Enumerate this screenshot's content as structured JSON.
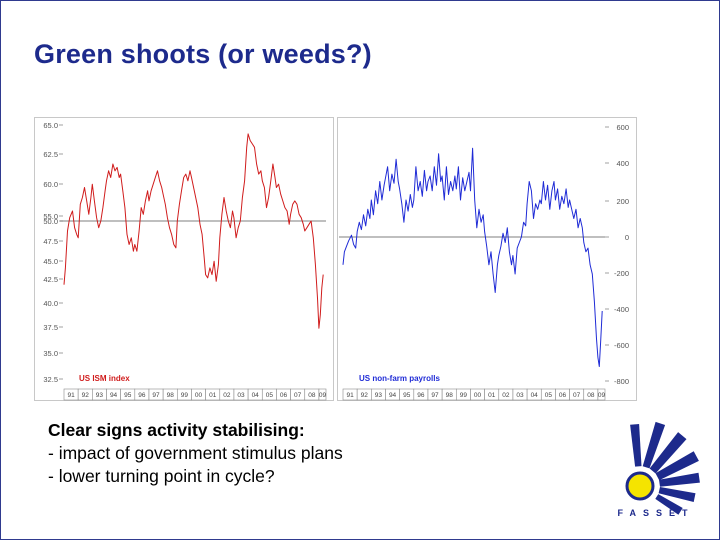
{
  "slide": {
    "title": "Green shoots (or weeds?)",
    "bullets": [
      "Clear signs activity stabilising:",
      "- impact of government stimulus plans",
      "- lower turning point in cycle?"
    ],
    "logo_text": "FASSET",
    "colors": {
      "title": "#1d2a8c",
      "border": "#2f3a8f",
      "logo_blue": "#1d2a8c",
      "logo_yellow": "#f5e400"
    }
  },
  "chart_data": [
    {
      "type": "line",
      "series": [
        {
          "name": "US ISM index",
          "color": "#d01c1c"
        }
      ],
      "x": [
        "91",
        "92",
        "93",
        "94",
        "95",
        "96",
        "97",
        "98",
        "99",
        "00",
        "01",
        "02",
        "03",
        "04",
        "05",
        "06",
        "07",
        "08",
        "09"
      ],
      "y_ticks": [
        "65.0",
        "62.5",
        "60.0",
        "55.0",
        "50.0",
        "47.5",
        "45.0",
        "42.5",
        "40.0",
        "37.5",
        "35.0",
        "32.5"
      ],
      "reference_line": 50,
      "points": [
        [
          1991.0,
          40.5
        ],
        [
          1991.1,
          43.0
        ],
        [
          1991.25,
          48.5
        ],
        [
          1991.4,
          50.5
        ],
        [
          1991.6,
          51.5
        ],
        [
          1991.75,
          49.0
        ],
        [
          1991.9,
          48.0
        ],
        [
          1992.0,
          47.5
        ],
        [
          1992.15,
          52.5
        ],
        [
          1992.3,
          53.5
        ],
        [
          1992.45,
          55.0
        ],
        [
          1992.6,
          53.0
        ],
        [
          1992.75,
          51.0
        ],
        [
          1992.9,
          53.5
        ],
        [
          1993.0,
          55.5
        ],
        [
          1993.15,
          53.0
        ],
        [
          1993.3,
          50.5
        ],
        [
          1993.45,
          49.0
        ],
        [
          1993.6,
          50.0
        ],
        [
          1993.75,
          52.0
        ],
        [
          1993.9,
          54.5
        ],
        [
          1994.0,
          56.0
        ],
        [
          1994.15,
          57.5
        ],
        [
          1994.3,
          56.5
        ],
        [
          1994.45,
          58.5
        ],
        [
          1994.6,
          57.5
        ],
        [
          1994.75,
          58.0
        ],
        [
          1994.9,
          56.5
        ],
        [
          1995.0,
          57.0
        ],
        [
          1995.15,
          54.5
        ],
        [
          1995.3,
          52.0
        ],
        [
          1995.45,
          48.0
        ],
        [
          1995.6,
          46.5
        ],
        [
          1995.75,
          47.5
        ],
        [
          1995.9,
          45.5
        ],
        [
          1996.0,
          46.5
        ],
        [
          1996.15,
          45.5
        ],
        [
          1996.3,
          48.5
        ],
        [
          1996.45,
          52.0
        ],
        [
          1996.6,
          51.0
        ],
        [
          1996.75,
          53.0
        ],
        [
          1996.9,
          54.5
        ],
        [
          1997.0,
          53.0
        ],
        [
          1997.15,
          54.5
        ],
        [
          1997.3,
          55.5
        ],
        [
          1997.45,
          56.5
        ],
        [
          1997.6,
          57.5
        ],
        [
          1997.75,
          56.0
        ],
        [
          1997.9,
          55.0
        ],
        [
          1998.0,
          54.0
        ],
        [
          1998.15,
          52.5
        ],
        [
          1998.3,
          50.5
        ],
        [
          1998.45,
          49.0
        ],
        [
          1998.6,
          48.0
        ],
        [
          1998.75,
          46.5
        ],
        [
          1998.9,
          46.0
        ],
        [
          1999.0,
          50.0
        ],
        [
          1999.15,
          52.5
        ],
        [
          1999.3,
          54.5
        ],
        [
          1999.45,
          56.5
        ],
        [
          1999.6,
          57.0
        ],
        [
          1999.75,
          56.0
        ],
        [
          1999.9,
          57.5
        ],
        [
          2000.0,
          56.5
        ],
        [
          2000.15,
          55.0
        ],
        [
          2000.3,
          53.5
        ],
        [
          2000.45,
          52.0
        ],
        [
          2000.6,
          49.5
        ],
        [
          2000.75,
          48.0
        ],
        [
          2000.9,
          44.5
        ],
        [
          2001.0,
          42.0
        ],
        [
          2001.15,
          41.5
        ],
        [
          2001.3,
          43.0
        ],
        [
          2001.45,
          42.0
        ],
        [
          2001.6,
          44.0
        ],
        [
          2001.75,
          41.0
        ],
        [
          2001.9,
          43.5
        ],
        [
          2002.0,
          47.5
        ],
        [
          2002.15,
          51.0
        ],
        [
          2002.3,
          53.5
        ],
        [
          2002.45,
          51.5
        ],
        [
          2002.6,
          50.0
        ],
        [
          2002.75,
          49.0
        ],
        [
          2002.9,
          51.5
        ],
        [
          2003.0,
          50.5
        ],
        [
          2003.15,
          47.5
        ],
        [
          2003.3,
          49.0
        ],
        [
          2003.45,
          50.0
        ],
        [
          2003.6,
          53.5
        ],
        [
          2003.75,
          56.0
        ],
        [
          2003.9,
          61.0
        ],
        [
          2004.0,
          63.0
        ],
        [
          2004.15,
          62.0
        ],
        [
          2004.3,
          61.5
        ],
        [
          2004.45,
          61.0
        ],
        [
          2004.6,
          58.5
        ],
        [
          2004.75,
          57.0
        ],
        [
          2004.9,
          57.5
        ],
        [
          2005.0,
          56.0
        ],
        [
          2005.15,
          55.0
        ],
        [
          2005.3,
          52.0
        ],
        [
          2005.45,
          53.5
        ],
        [
          2005.6,
          56.0
        ],
        [
          2005.75,
          58.5
        ],
        [
          2005.9,
          56.5
        ],
        [
          2006.0,
          55.0
        ],
        [
          2006.15,
          55.5
        ],
        [
          2006.3,
          54.0
        ],
        [
          2006.45,
          53.0
        ],
        [
          2006.6,
          52.0
        ],
        [
          2006.75,
          51.5
        ],
        [
          2006.9,
          49.5
        ],
        [
          2007.0,
          51.0
        ],
        [
          2007.15,
          52.5
        ],
        [
          2007.3,
          53.0
        ],
        [
          2007.45,
          52.5
        ],
        [
          2007.6,
          51.0
        ],
        [
          2007.75,
          50.5
        ],
        [
          2007.9,
          49.5
        ],
        [
          2008.0,
          48.5
        ],
        [
          2008.15,
          49.0
        ],
        [
          2008.3,
          49.5
        ],
        [
          2008.45,
          50.0
        ],
        [
          2008.6,
          47.5
        ],
        [
          2008.75,
          43.5
        ],
        [
          2008.9,
          38.5
        ],
        [
          2009.0,
          34.0
        ],
        [
          2009.1,
          36.0
        ],
        [
          2009.2,
          40.0
        ],
        [
          2009.3,
          42.0
        ]
      ]
    },
    {
      "type": "line",
      "series": [
        {
          "name": "US non-farm payrolls",
          "color": "#1f2bd6"
        }
      ],
      "x": [
        "91",
        "92",
        "93",
        "94",
        "95",
        "96",
        "97",
        "98",
        "99",
        "00",
        "01",
        "02",
        "03",
        "04",
        "05",
        "06",
        "07",
        "08",
        "09"
      ],
      "y_ticks": [
        "600",
        "400",
        "200",
        "0",
        "-200",
        "-400",
        "-600",
        "-800"
      ],
      "reference_line": 0,
      "points": [
        [
          1991.0,
          -150
        ],
        [
          1991.1,
          -80
        ],
        [
          1991.25,
          -50
        ],
        [
          1991.4,
          -20
        ],
        [
          1991.6,
          10
        ],
        [
          1991.75,
          -40
        ],
        [
          1991.9,
          -60
        ],
        [
          1992.0,
          30
        ],
        [
          1992.15,
          80
        ],
        [
          1992.3,
          40
        ],
        [
          1992.45,
          120
        ],
        [
          1992.6,
          60
        ],
        [
          1992.75,
          150
        ],
        [
          1992.9,
          100
        ],
        [
          1993.0,
          200
        ],
        [
          1993.15,
          120
        ],
        [
          1993.3,
          250
        ],
        [
          1993.45,
          180
        ],
        [
          1993.6,
          300
        ],
        [
          1993.75,
          200
        ],
        [
          1993.9,
          280
        ],
        [
          1994.0,
          320
        ],
        [
          1994.15,
          380
        ],
        [
          1994.3,
          250
        ],
        [
          1994.45,
          340
        ],
        [
          1994.6,
          290
        ],
        [
          1994.75,
          420
        ],
        [
          1994.9,
          300
        ],
        [
          1995.0,
          260
        ],
        [
          1995.15,
          180
        ],
        [
          1995.3,
          80
        ],
        [
          1995.45,
          200
        ],
        [
          1995.6,
          140
        ],
        [
          1995.75,
          230
        ],
        [
          1995.9,
          160
        ],
        [
          1996.0,
          200
        ],
        [
          1996.15,
          380
        ],
        [
          1996.3,
          250
        ],
        [
          1996.45,
          300
        ],
        [
          1996.6,
          220
        ],
        [
          1996.75,
          360
        ],
        [
          1996.9,
          250
        ],
        [
          1997.0,
          300
        ],
        [
          1997.15,
          330
        ],
        [
          1997.3,
          250
        ],
        [
          1997.45,
          380
        ],
        [
          1997.6,
          280
        ],
        [
          1997.75,
          450
        ],
        [
          1997.9,
          300
        ],
        [
          1998.0,
          330
        ],
        [
          1998.15,
          200
        ],
        [
          1998.3,
          380
        ],
        [
          1998.45,
          230
        ],
        [
          1998.6,
          300
        ],
        [
          1998.75,
          250
        ],
        [
          1998.9,
          330
        ],
        [
          1999.0,
          260
        ],
        [
          1999.15,
          380
        ],
        [
          1999.3,
          200
        ],
        [
          1999.45,
          320
        ],
        [
          1999.6,
          250
        ],
        [
          1999.75,
          300
        ],
        [
          1999.9,
          350
        ],
        [
          2000.0,
          250
        ],
        [
          2000.15,
          480
        ],
        [
          2000.3,
          200
        ],
        [
          2000.45,
          50
        ],
        [
          2000.6,
          150
        ],
        [
          2000.75,
          80
        ],
        [
          2000.9,
          120
        ],
        [
          2001.0,
          30
        ],
        [
          2001.15,
          -50
        ],
        [
          2001.3,
          -150
        ],
        [
          2001.45,
          -80
        ],
        [
          2001.6,
          -200
        ],
        [
          2001.75,
          -300
        ],
        [
          2001.9,
          -150
        ],
        [
          2002.0,
          -100
        ],
        [
          2002.15,
          -50
        ],
        [
          2002.3,
          20
        ],
        [
          2002.45,
          -30
        ],
        [
          2002.6,
          50
        ],
        [
          2002.75,
          -80
        ],
        [
          2002.9,
          -150
        ],
        [
          2003.0,
          -100
        ],
        [
          2003.15,
          -200
        ],
        [
          2003.3,
          -60
        ],
        [
          2003.45,
          -30
        ],
        [
          2003.6,
          0
        ],
        [
          2003.75,
          80
        ],
        [
          2003.9,
          60
        ],
        [
          2004.0,
          180
        ],
        [
          2004.15,
          300
        ],
        [
          2004.3,
          250
        ],
        [
          2004.45,
          100
        ],
        [
          2004.6,
          180
        ],
        [
          2004.75,
          150
        ],
        [
          2004.9,
          200
        ],
        [
          2005.0,
          180
        ],
        [
          2005.15,
          300
        ],
        [
          2005.3,
          200
        ],
        [
          2005.45,
          280
        ],
        [
          2005.6,
          150
        ],
        [
          2005.75,
          250
        ],
        [
          2005.9,
          300
        ],
        [
          2006.0,
          200
        ],
        [
          2006.15,
          260
        ],
        [
          2006.3,
          150
        ],
        [
          2006.45,
          220
        ],
        [
          2006.6,
          180
        ],
        [
          2006.75,
          260
        ],
        [
          2006.9,
          160
        ],
        [
          2007.0,
          200
        ],
        [
          2007.15,
          150
        ],
        [
          2007.3,
          100
        ],
        [
          2007.45,
          150
        ],
        [
          2007.6,
          50
        ],
        [
          2007.75,
          100
        ],
        [
          2007.9,
          50
        ],
        [
          2008.0,
          -30
        ],
        [
          2008.15,
          -80
        ],
        [
          2008.3,
          -60
        ],
        [
          2008.45,
          -150
        ],
        [
          2008.6,
          -200
        ],
        [
          2008.75,
          -350
        ],
        [
          2008.9,
          -550
        ],
        [
          2009.0,
          -650
        ],
        [
          2009.1,
          -700
        ],
        [
          2009.2,
          -550
        ],
        [
          2009.3,
          -400
        ]
      ]
    }
  ]
}
